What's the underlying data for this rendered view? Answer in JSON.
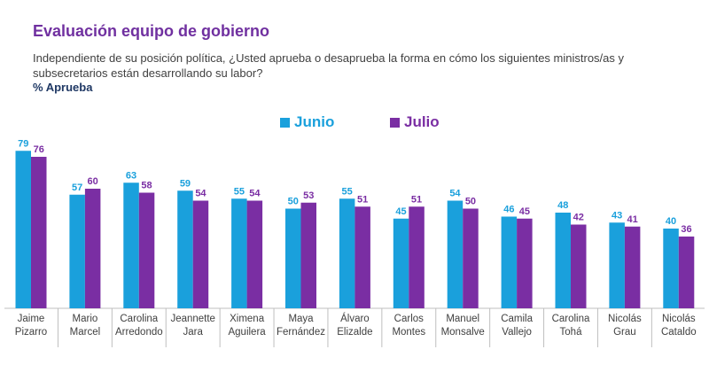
{
  "header": {
    "title": "Evaluación equipo de gobierno",
    "subtitle": "Independiente de su posición política, ¿Usted aprueba o desaprueba la forma en cómo los siguientes ministros/as y subsecretarios están desarrollando su labor?",
    "metric": "% Aprueba"
  },
  "colors": {
    "junio": "#1aa0dc",
    "julio": "#7a2ea3"
  },
  "chart_data": {
    "type": "bar",
    "title": "Evaluación equipo de gobierno",
    "ylabel": "% Aprueba",
    "ylim": [
      0,
      100
    ],
    "legend_position": "top-center",
    "categories": [
      [
        "Jaime",
        "Pizarro"
      ],
      [
        "Mario",
        "Marcel"
      ],
      [
        "Carolina",
        "Arredondo"
      ],
      [
        "Jeannette",
        "Jara"
      ],
      [
        "Ximena",
        "Aguilera"
      ],
      [
        "Maya",
        "Fernández"
      ],
      [
        "Álvaro",
        "Elizalde"
      ],
      [
        "Carlos",
        "Montes"
      ],
      [
        "Manuel",
        "Monsalve"
      ],
      [
        "Camila",
        "Vallejo"
      ],
      [
        "Carolina",
        "Tohá"
      ],
      [
        "Nicolás",
        "Grau"
      ],
      [
        "Nicolás",
        "Cataldo"
      ]
    ],
    "series": [
      {
        "name": "Junio",
        "values": [
          79,
          57,
          63,
          59,
          55,
          50,
          55,
          45,
          54,
          46,
          48,
          43,
          40
        ]
      },
      {
        "name": "Julio",
        "values": [
          76,
          60,
          58,
          54,
          54,
          53,
          51,
          51,
          50,
          45,
          42,
          41,
          36
        ]
      }
    ]
  }
}
